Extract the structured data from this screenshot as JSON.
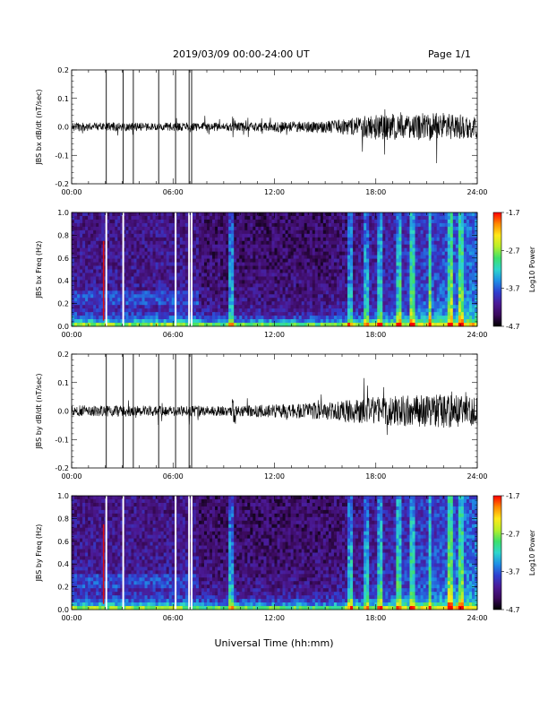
{
  "header": {
    "title": "2019/03/09  00:00-24:00 UT",
    "page": "Page 1/1"
  },
  "xlabel": "Universal Time (hh:mm)",
  "colors": {
    "colormap": [
      "#000000",
      "#3b0a5c",
      "#4b1a96",
      "#2f3fd0",
      "#1f8fe6",
      "#2ed6cc",
      "#3ee06a",
      "#b8ef2a",
      "#ffe81a",
      "#ff8a00",
      "#ff0000"
    ],
    "trace": "#000000"
  },
  "chart_data": [
    {
      "type": "line",
      "ylabel": "JBS bx dB/dt (nT/sec)",
      "xlim": [
        0,
        24
      ],
      "ylim": [
        -0.2,
        0.2
      ],
      "xticks": [
        "00:00",
        "06:00",
        "12:00",
        "18:00",
        "24:00"
      ],
      "yticks": [
        "0.2",
        "0.1",
        "0.0",
        "-0.1",
        "-0.2"
      ],
      "spikes_hours": [
        2.05,
        3.05,
        3.65,
        5.15,
        6.15,
        6.95,
        7.1
      ],
      "envelope": {
        "hours": [
          0,
          9.5,
          15,
          16.5,
          18,
          22,
          24
        ],
        "amplitude": [
          0.015,
          0.015,
          0.02,
          0.03,
          0.045,
          0.05,
          0.04
        ]
      }
    },
    {
      "type": "heatmap",
      "ylabel": "JBS bx Freq (Hz)",
      "xlim": [
        0,
        24
      ],
      "ylim": [
        0,
        1.0
      ],
      "xticks": [
        "00:00",
        "06:00",
        "12:00",
        "18:00",
        "24:00"
      ],
      "yticks": [
        "1.0",
        "0.8",
        "0.6",
        "0.4",
        "0.2",
        "0.0"
      ],
      "colorbar": {
        "label": "Log10 Power",
        "ticks": [
          "-1.7",
          "-2.7",
          "-3.7",
          "-4.7"
        ],
        "range": [
          -4.7,
          -1.7
        ]
      },
      "gap_hours": [
        2.05,
        3.05,
        6.15,
        6.95,
        7.1
      ]
    },
    {
      "type": "line",
      "ylabel": "JBS by dB/dt (nT/sec)",
      "xlim": [
        0,
        24
      ],
      "ylim": [
        -0.2,
        0.2
      ],
      "xticks": [
        "00:00",
        "06:00",
        "12:00",
        "18:00",
        "24:00"
      ],
      "yticks": [
        "0.2",
        "0.1",
        "0.0",
        "-0.1",
        "-0.2"
      ],
      "spikes_hours": [
        2.05,
        3.05,
        3.65,
        5.15,
        6.15,
        6.95,
        7.1
      ],
      "envelope": {
        "hours": [
          0,
          9.5,
          15,
          16.5,
          18,
          22,
          24
        ],
        "amplitude": [
          0.02,
          0.018,
          0.03,
          0.04,
          0.05,
          0.06,
          0.05
        ]
      }
    },
    {
      "type": "heatmap",
      "ylabel": "JBS by Freq (Hz)",
      "xlim": [
        0,
        24
      ],
      "ylim": [
        0,
        1.0
      ],
      "xticks": [
        "00:00",
        "06:00",
        "12:00",
        "18:00",
        "24:00"
      ],
      "yticks": [
        "1.0",
        "0.8",
        "0.6",
        "0.4",
        "0.2",
        "0.0"
      ],
      "colorbar": {
        "label": "Log10 Power",
        "ticks": [
          "-1.7",
          "-2.7",
          "-3.7",
          "-4.7"
        ],
        "range": [
          -4.7,
          -1.7
        ]
      },
      "gap_hours": [
        2.05,
        3.05,
        6.15,
        6.95,
        7.1
      ]
    }
  ]
}
